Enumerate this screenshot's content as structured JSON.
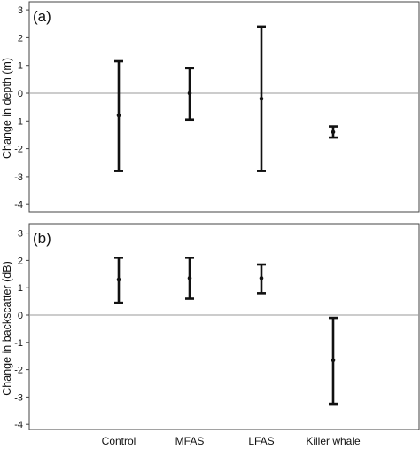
{
  "chart_data": [
    {
      "type": "errorbar",
      "panel_label": "(a)",
      "ylabel": "Change in depth (m)",
      "categories": [
        "Control",
        "MFAS",
        "LFAS",
        "Killer whale"
      ],
      "mean": [
        -0.8,
        0.0,
        -0.2,
        -1.4
      ],
      "lower": [
        -2.8,
        -0.95,
        -2.8,
        -1.6
      ],
      "upper": [
        1.15,
        0.9,
        2.4,
        -1.2
      ],
      "ylim": [
        -4.2,
        3.0
      ],
      "yticks": [
        -4,
        -3,
        -2,
        -1,
        0,
        1,
        2,
        3
      ],
      "reference_line": 0,
      "grid": false
    },
    {
      "type": "errorbar",
      "panel_label": "(b)",
      "ylabel": "Change in backscatter (dB)",
      "categories": [
        "Control",
        "MFAS",
        "LFAS",
        "Killer whale"
      ],
      "mean": [
        1.3,
        1.35,
        1.35,
        -1.65
      ],
      "lower": [
        0.45,
        0.6,
        0.8,
        -3.25
      ],
      "upper": [
        2.1,
        2.1,
        1.85,
        -0.1
      ],
      "ylim": [
        -4.2,
        3.0
      ],
      "yticks": [
        -4,
        -3,
        -2,
        -1,
        0,
        1,
        2,
        3
      ],
      "reference_line": 0,
      "grid": false
    }
  ]
}
